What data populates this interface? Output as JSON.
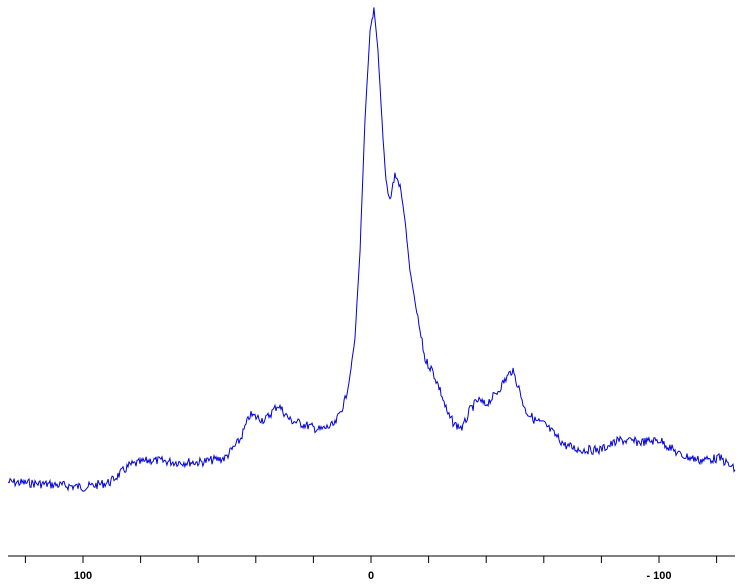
{
  "chart_data": {
    "type": "line",
    "title": "",
    "xlabel": "",
    "ylabel": "",
    "x_reversed": true,
    "xlim": [
      126,
      -126.4
    ],
    "ylim": [
      0,
      100
    ],
    "grid": false,
    "x_ticks_major_step": 20,
    "x_tick_labels": [
      {
        "value": 100,
        "label": "100"
      },
      {
        "value": 0,
        "label": "0"
      },
      {
        "value": -100,
        "label": "- 100"
      }
    ],
    "series": [
      {
        "color": "#0000dd",
        "x": [
          126.0,
          118.4,
          108.0,
          99.3,
          90.6,
          83.7,
          76.7,
          68.1,
          59.4,
          50.7,
          45.5,
          42.0,
          36.8,
          32.3,
          28.1,
          22.9,
          17.7,
          12.5,
          9.0,
          7.3,
          5.6,
          3.8,
          2.1,
          0.3,
          -1.0,
          -2.4,
          -4.2,
          -5.2,
          -6.6,
          -8.3,
          -10.1,
          -11.8,
          -13.5,
          -16.3,
          -18.8,
          -21.2,
          -24.0,
          -26.7,
          -29.2,
          -31.9,
          -34.4,
          -37.2,
          -39.6,
          -43.1,
          -46.5,
          -49.0,
          -51.0,
          -53.5,
          -56.9,
          -60.4,
          -63.9,
          -67.4,
          -72.6,
          -79.5,
          -86.5,
          -93.4,
          -100.3,
          -107.3,
          -114.2,
          -121.2,
          -126.4
        ],
        "y": [
          7.4,
          7.2,
          6.8,
          6.4,
          7.4,
          10.7,
          11.7,
          11.3,
          11.3,
          12.1,
          15.6,
          20.5,
          19.5,
          22.5,
          19.5,
          18.6,
          17.6,
          18.6,
          23.4,
          28.3,
          35.2,
          52.7,
          78.1,
          95.7,
          100,
          91.8,
          74.2,
          66.4,
          62.5,
          67.4,
          65.4,
          58.6,
          48.8,
          39.1,
          31.3,
          29.3,
          25.4,
          20.5,
          18.6,
          18.0,
          21.5,
          23.4,
          22.5,
          24.4,
          27.3,
          29.3,
          26.4,
          21.5,
          19.5,
          18.6,
          16.6,
          14.6,
          13.7,
          13.7,
          15.6,
          15.2,
          15.6,
          12.7,
          11.7,
          12.1,
          9.8
        ]
      }
    ]
  }
}
